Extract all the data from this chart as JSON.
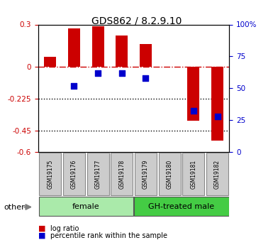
{
  "title": "GDS862 / 8.2.9.10",
  "samples": [
    "GSM19175",
    "GSM19176",
    "GSM19177",
    "GSM19178",
    "GSM19179",
    "GSM19180",
    "GSM19181",
    "GSM19182"
  ],
  "log_ratio": [
    0.07,
    0.27,
    0.285,
    0.22,
    0.16,
    0.0,
    -0.38,
    -0.52
  ],
  "percentile_rank": [
    null,
    0.52,
    0.62,
    0.62,
    0.58,
    null,
    0.32,
    0.28
  ],
  "ylim_left": [
    -0.6,
    0.3
  ],
  "ylim_right": [
    0,
    100
  ],
  "yticks_left": [
    0.3,
    0.0,
    -0.225,
    -0.45,
    -0.6
  ],
  "yticks_left_labels": [
    "0.3",
    "0",
    "-0.225",
    "-0.45",
    "-0.6"
  ],
  "yticks_right": [
    100,
    75,
    50,
    25,
    0
  ],
  "yticks_right_labels": [
    "100%",
    "75",
    "50",
    "25",
    "0"
  ],
  "hlines": [
    -0.225,
    -0.45
  ],
  "groups": [
    {
      "label": "female",
      "start": 0,
      "end": 3,
      "color": "#aaeaaa"
    },
    {
      "label": "GH-treated male",
      "start": 4,
      "end": 7,
      "color": "#44cc44"
    }
  ],
  "bar_color": "#cc0000",
  "dot_color": "#0000cc",
  "zero_line_color": "#cc0000",
  "bg_color": "#ffffff",
  "plot_bg": "#ffffff",
  "tick_label_color_left": "#cc0000",
  "tick_label_color_right": "#0000cc",
  "legend_items": [
    "log ratio",
    "percentile rank within the sample"
  ],
  "other_label": "other",
  "sample_box_color": "#cccccc",
  "sample_box_edge": "#888888"
}
